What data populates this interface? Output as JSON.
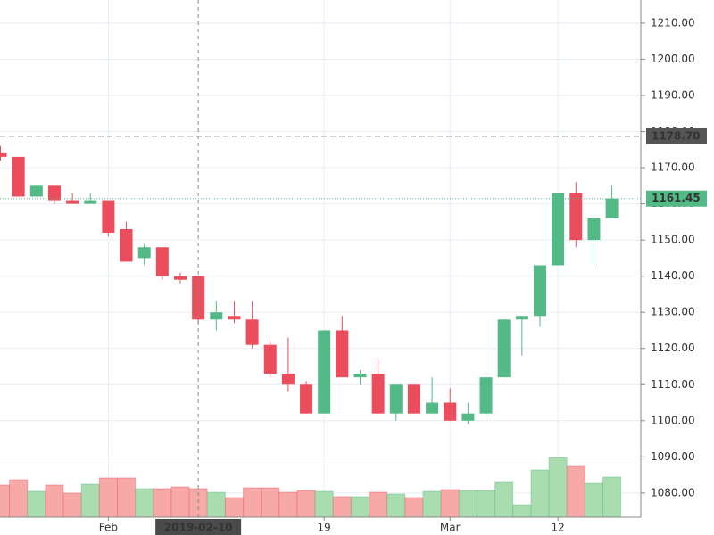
{
  "chart_data": {
    "type": "candlestick",
    "categories": [
      null,
      null,
      null,
      null,
      null,
      null,
      "Feb",
      null,
      null,
      null,
      null,
      null,
      null,
      null,
      null,
      null,
      null,
      null,
      "19",
      null,
      null,
      null,
      null,
      null,
      null,
      "Mar",
      null,
      null,
      null,
      null,
      null,
      "12",
      null,
      null,
      null
    ],
    "open": [
      1174,
      1173,
      1162,
      1165,
      1161,
      1160,
      1161,
      1153,
      1145,
      1148,
      1140,
      1140,
      1128,
      1129,
      1128,
      1121,
      1113,
      1110,
      1102,
      1125,
      1112,
      1113,
      1102,
      1110,
      1102,
      1105,
      1100,
      1102,
      1112,
      1128,
      1129,
      1143,
      1163,
      1150,
      1156
    ],
    "high": [
      1176,
      1173,
      1165,
      1165,
      1163,
      1163,
      1161,
      1155,
      1149,
      1148,
      1141,
      1140,
      1133,
      1133,
      1133,
      1122,
      1123,
      1111,
      1125,
      1129,
      1114,
      1117,
      1110,
      1110,
      1112,
      1109,
      1105,
      1112,
      1128,
      1129,
      1143,
      1163,
      1166,
      1157,
      1165
    ],
    "low": [
      1172,
      1162,
      1162,
      1160,
      1160,
      1160,
      1151,
      1144,
      1143,
      1139,
      1138,
      1127,
      1125,
      1127,
      1120,
      1112,
      1108,
      1102,
      1102,
      1112,
      1110,
      1102,
      1100,
      1102,
      1102,
      1100,
      1099,
      1101,
      1112,
      1118,
      1126,
      1143,
      1148,
      1143,
      1156
    ],
    "close": [
      1173,
      1162,
      1165,
      1161,
      1160,
      1161,
      1152,
      1144,
      1148,
      1140,
      1139,
      1128,
      1130,
      1128,
      1121,
      1113,
      1110,
      1102,
      1125,
      1112,
      1113,
      1102,
      1110,
      1102,
      1105,
      1100,
      1102,
      1112,
      1128,
      1129,
      1143,
      1163,
      1150,
      1156,
      1161.45
    ],
    "volume": [
      36,
      42,
      29,
      36,
      27,
      37,
      44,
      44,
      32,
      32,
      34,
      32,
      28,
      22,
      33,
      33,
      28,
      30,
      29,
      23,
      23,
      28,
      26,
      22,
      29,
      31,
      30,
      30,
      39,
      14,
      53,
      67,
      57,
      38,
      45
    ],
    "volume_ylim": [
      0,
      100
    ],
    "up_color": "#53b987",
    "down_color": "#eb4d5c",
    "up_volume_color": "#a9dcae",
    "down_volume_color": "#f7a9a7",
    "ylim": [
      1073.3,
      1216.4
    ],
    "yticks": [
      {
        "value": 1080,
        "label": "1080.00"
      },
      {
        "value": 1090,
        "label": "1090.00"
      },
      {
        "value": 1100,
        "label": "1100.00"
      },
      {
        "value": 1110,
        "label": "1110.00"
      },
      {
        "value": 1120,
        "label": "1120.00"
      },
      {
        "value": 1130,
        "label": "1130.00"
      },
      {
        "value": 1140,
        "label": "1140.00"
      },
      {
        "value": 1150,
        "label": "1150.00"
      },
      {
        "value": 1160,
        "label": "1160.00"
      },
      {
        "value": 1170,
        "label": "1170.00"
      },
      {
        "value": 1180,
        "label": "1180.00"
      },
      {
        "value": 1190,
        "label": "1190.00"
      },
      {
        "value": 1200,
        "label": "1200.00"
      },
      {
        "value": 1210,
        "label": "1210.00"
      }
    ],
    "grid": true,
    "price_lines": [
      {
        "value": 1178.7,
        "label": "1178.70",
        "color": "#555555"
      },
      {
        "value": 1161.45,
        "label": "1161.45",
        "color": "#53b987"
      }
    ],
    "crosshair": {
      "index": 11,
      "label": "2019-02-10"
    }
  }
}
